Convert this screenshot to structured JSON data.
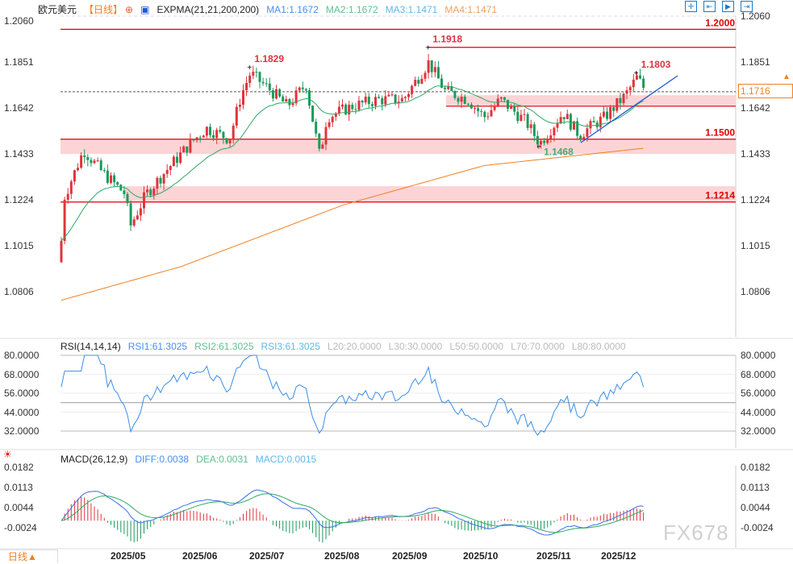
{
  "header": {
    "symbol": "欧元美元",
    "period": "【日线】",
    "indicator": "EXPMA(21,21,200,200)",
    "ma1": "MA1:1.1672",
    "ma2": "MA2:1.1672",
    "ma3": "MA3:1.1471",
    "ma4": "MA4:1.1471"
  },
  "rsi_header": {
    "title": "RSI(14,14,14)",
    "rsi1": "RSI1:61.3025",
    "rsi2": "RSI2:61.3025",
    "rsi3": "RSI3:61.3025",
    "l20": "L20:20.0000",
    "l30": "L30:30.0000",
    "l50": "L50:50.0000",
    "l70": "L70:70.0000",
    "l80": "L80:80.0000"
  },
  "macd_header": {
    "title": "MACD(26,12,9)",
    "diff": "DIFF:0.0038",
    "dea": "DEA:0.0031",
    "macd": "MACD:0.0015"
  },
  "price_axis": [
    "1.2060",
    "1.1851",
    "1.1642",
    "1.1433",
    "1.1224",
    "1.1015",
    "1.0806"
  ],
  "rsi_axis": [
    "80.0000",
    "68.0000",
    "56.0000",
    "44.0000",
    "32.0000"
  ],
  "macd_axis": [
    "0.0182",
    "0.0113",
    "0.0044",
    "-0.0024"
  ],
  "x_axis": [
    "2025/05",
    "2025/06",
    "2025/07",
    "2025/08",
    "2025/09",
    "2025/10",
    "2025/11",
    "2025/12"
  ],
  "period_button": "日线▲",
  "current_price": "1.1716",
  "watermark": "FX678",
  "toolbar": [
    "crosshair-icon",
    "zoom-fit-icon",
    "play-icon",
    "move-end-icon"
  ],
  "colors": {
    "up": "#e0343c",
    "down": "#1a9a5c",
    "ema21": "#2fa860",
    "ema200": "#f08020",
    "trend": "#1a56e0",
    "zone": "#fcd4d6",
    "level": "#e00000"
  },
  "chart_data": {
    "type": "candlestick",
    "ylim": [
      1.0806,
      1.206
    ],
    "close_waypoints": [
      [
        "2025-04-10",
        1.094
      ],
      [
        "2025-04-11",
        1.122
      ],
      [
        "2025-04-20",
        1.145
      ],
      [
        "2025-04-28",
        1.135
      ],
      [
        "2025-05-08",
        1.125
      ],
      [
        "2025-05-10",
        1.11
      ],
      [
        "2025-05-17",
        1.125
      ],
      [
        "2025-05-25",
        1.135
      ],
      [
        "2025-06-05",
        1.148
      ],
      [
        "2025-06-12",
        1.155
      ],
      [
        "2025-06-22",
        1.15
      ],
      [
        "2025-06-27",
        1.17
      ],
      [
        "2025-07-01",
        1.18
      ],
      [
        "2025-07-10",
        1.172
      ],
      [
        "2025-07-17",
        1.165
      ],
      [
        "2025-07-25",
        1.175
      ],
      [
        "2025-07-31",
        1.142
      ],
      [
        "2025-08-03",
        1.16
      ],
      [
        "2025-08-14",
        1.165
      ],
      [
        "2025-08-25",
        1.168
      ],
      [
        "2025-09-05",
        1.168
      ],
      [
        "2025-09-16",
        1.185
      ],
      [
        "2025-09-23",
        1.172
      ],
      [
        "2025-10-03",
        1.168
      ],
      [
        "2025-10-10",
        1.16
      ],
      [
        "2025-10-17",
        1.168
      ],
      [
        "2025-10-28",
        1.158
      ],
      [
        "2025-11-03",
        1.148
      ],
      [
        "2025-11-13",
        1.162
      ],
      [
        "2025-11-20",
        1.152
      ],
      [
        "2025-12-01",
        1.16
      ],
      [
        "2025-12-10",
        1.17
      ],
      [
        "2025-12-15",
        1.178
      ],
      [
        "2025-12-19",
        1.1716
      ]
    ],
    "ema200_waypoints": [
      [
        "2025-04-10",
        1.0766
      ],
      [
        "2025-06-01",
        1.092
      ],
      [
        "2025-08-10",
        1.12
      ],
      [
        "2025-10-10",
        1.138
      ],
      [
        "2025-12-19",
        1.146
      ]
    ],
    "levels": [
      {
        "label": "1.2000",
        "value": 1.2
      },
      {
        "label": "1.1918",
        "value": 1.1918
      },
      {
        "label": "1.1500",
        "value": 1.15
      },
      {
        "label": "1.1214",
        "value": 1.1214
      }
    ],
    "zones": [
      [
        1.1433,
        1.15
      ],
      [
        1.1214,
        1.1286
      ],
      [
        1.165,
        1.17
      ]
    ],
    "annotations": [
      {
        "label": "1.1829",
        "value": 1.1829,
        "date": "2025-07-01"
      },
      {
        "label": "1.1918",
        "value": 1.1918,
        "date": "2025-09-16"
      },
      {
        "label": "1.1803",
        "value": 1.1803,
        "date": "2025-12-15"
      },
      {
        "label": "1.1468",
        "value": 1.1468,
        "date": "2025-11-03"
      }
    ],
    "rsi_ylim": [
      32,
      80
    ],
    "macd_ylim": [
      -0.0024,
      0.0182
    ]
  }
}
